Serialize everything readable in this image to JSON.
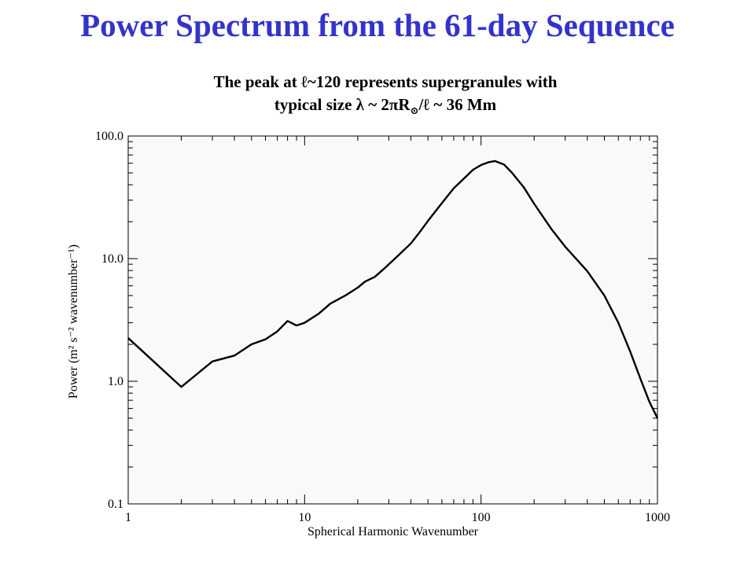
{
  "slide": {
    "title": "Power Spectrum from the 61-day Sequence",
    "title_color": "#3333cc",
    "subtitle_line1": "The peak at ℓ~120 represents supergranules with",
    "subtitle_line2_a": "typical size λ ~ 2πR",
    "subtitle_line2_sub": "⊙",
    "subtitle_line2_b": "/ℓ ~ 36 Mm"
  },
  "chart_data": {
    "type": "line",
    "x_scale": "log",
    "y_scale": "log",
    "xlim": [
      1,
      1000
    ],
    "ylim": [
      0.1,
      100
    ],
    "xlabel": "Spherical Harmonic Wavenumber",
    "ylabel": "Power (m² s⁻² wavenumber⁻¹)",
    "x_ticks": [
      {
        "value": 1,
        "label": "1"
      },
      {
        "value": 10,
        "label": "10"
      },
      {
        "value": 100,
        "label": "100"
      },
      {
        "value": 1000,
        "label": "1000"
      }
    ],
    "y_ticks": [
      {
        "value": 0.1,
        "label": "0.1"
      },
      {
        "value": 1,
        "label": "1.0"
      },
      {
        "value": 10,
        "label": "10.0"
      },
      {
        "value": 100,
        "label": "100.0"
      }
    ],
    "plot_background": "#f9f9f9",
    "line_color": "#000000",
    "series": [
      {
        "x": [
          1,
          2,
          3,
          4,
          5,
          6,
          7,
          8,
          9,
          10,
          12,
          14,
          17,
          20,
          22,
          25,
          28,
          32,
          36,
          40,
          45,
          50,
          56,
          63,
          70,
          80,
          90,
          100,
          110,
          120,
          135,
          150,
          175,
          200,
          250,
          300,
          400,
          500,
          600,
          700,
          800,
          900,
          1000
        ],
        "y": [
          2.25,
          0.9,
          1.45,
          1.62,
          2.0,
          2.2,
          2.55,
          3.1,
          2.85,
          3.0,
          3.55,
          4.3,
          5.0,
          5.8,
          6.5,
          7.1,
          8.2,
          9.8,
          11.5,
          13.3,
          16.5,
          20.3,
          25.0,
          31.0,
          37.5,
          45.0,
          53.0,
          58.0,
          61.0,
          62.5,
          58.5,
          50.0,
          38.0,
          28.0,
          17.5,
          12.5,
          7.9,
          5.0,
          3.0,
          1.75,
          1.05,
          0.68,
          0.5
        ]
      }
    ]
  }
}
